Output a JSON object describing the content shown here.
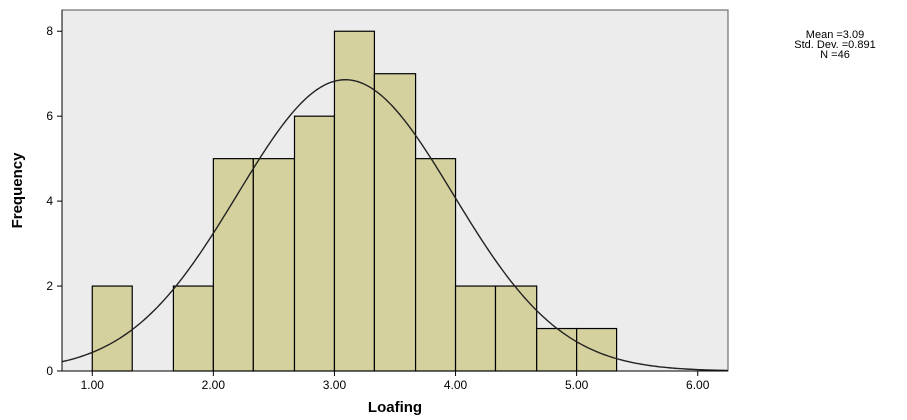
{
  "chart_data": {
    "type": "bar",
    "subtype": "histogram",
    "xlabel": "Loafing",
    "ylabel": "Frequency",
    "xlim": [
      0.75,
      6.25
    ],
    "ylim": [
      0,
      8.5
    ],
    "x_ticks": [
      1.0,
      2.0,
      3.0,
      4.0,
      5.0,
      6.0
    ],
    "x_tick_labels": [
      "1.00",
      "2.00",
      "3.00",
      "4.00",
      "5.00",
      "6.00"
    ],
    "y_ticks": [
      0,
      2,
      4,
      6,
      8
    ],
    "y_tick_labels": [
      "0",
      "2",
      "4",
      "6",
      "8"
    ],
    "bin_width": 0.333,
    "bins": [
      {
        "start": 1.0,
        "end": 1.33,
        "count": 2
      },
      {
        "start": 1.67,
        "end": 2.0,
        "count": 2
      },
      {
        "start": 2.0,
        "end": 2.33,
        "count": 5
      },
      {
        "start": 2.33,
        "end": 2.67,
        "count": 5
      },
      {
        "start": 2.67,
        "end": 3.0,
        "count": 6
      },
      {
        "start": 3.0,
        "end": 3.33,
        "count": 8
      },
      {
        "start": 3.33,
        "end": 3.67,
        "count": 7
      },
      {
        "start": 3.67,
        "end": 4.0,
        "count": 5
      },
      {
        "start": 4.0,
        "end": 4.33,
        "count": 2
      },
      {
        "start": 4.33,
        "end": 4.67,
        "count": 2
      },
      {
        "start": 4.67,
        "end": 5.0,
        "count": 1
      },
      {
        "start": 5.0,
        "end": 5.33,
        "count": 1
      }
    ],
    "normal_curve": {
      "mean": 3.09,
      "std": 0.891,
      "n": 46
    },
    "bar_color": "#d5d19f",
    "bar_edge_color": "#000000",
    "plot_background": "#ececec",
    "grid": false,
    "stats": {
      "mean_label": "Mean =3.09",
      "std_label": "Std. Dev. =0.891",
      "n_label": "N =46"
    }
  }
}
